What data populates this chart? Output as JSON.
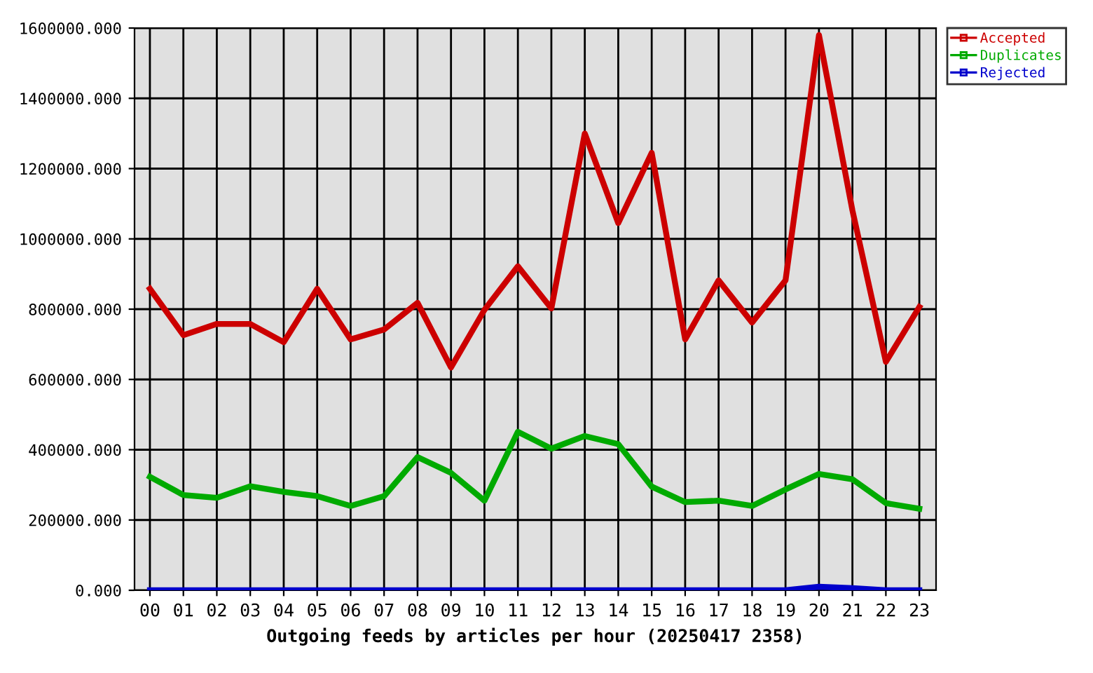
{
  "chart_data": {
    "type": "line",
    "xlabel": "Outgoing feeds by articles per hour (20250417 2358)",
    "categories": [
      "00",
      "01",
      "02",
      "03",
      "04",
      "05",
      "06",
      "07",
      "08",
      "09",
      "10",
      "11",
      "12",
      "13",
      "14",
      "15",
      "16",
      "17",
      "18",
      "19",
      "20",
      "21",
      "22",
      "23"
    ],
    "series": [
      {
        "name": "Accepted",
        "color": "#cc0000",
        "values": [
          858000,
          726000,
          758000,
          758000,
          706000,
          858000,
          714000,
          742000,
          818000,
          634000,
          798000,
          922000,
          802000,
          1300000,
          1045000,
          1245000,
          714000,
          882000,
          762000,
          882000,
          1580000,
          1081000,
          650000,
          806000
        ]
      },
      {
        "name": "Duplicates",
        "color": "#00aa00",
        "values": [
          323000,
          271000,
          263000,
          296000,
          280000,
          268000,
          240000,
          268000,
          379000,
          334000,
          255000,
          451000,
          403000,
          439000,
          416000,
          295000,
          251000,
          255000,
          240000,
          287000,
          331000,
          316000,
          248000,
          232000
        ]
      },
      {
        "name": "Rejected",
        "color": "#0000cc",
        "values": [
          0,
          0,
          0,
          0,
          0,
          0,
          0,
          0,
          0,
          0,
          0,
          0,
          0,
          0,
          0,
          0,
          0,
          0,
          0,
          0,
          10000,
          6000,
          0,
          0
        ]
      }
    ],
    "ylim": [
      0,
      1600000
    ],
    "yticks": [
      {
        "value": 0,
        "label": "0.000"
      },
      {
        "value": 200000,
        "label": "200000.000"
      },
      {
        "value": 400000,
        "label": "400000.000"
      },
      {
        "value": 600000,
        "label": "600000.000"
      },
      {
        "value": 800000,
        "label": "800000.000"
      },
      {
        "value": 1000000,
        "label": "1000000.000"
      },
      {
        "value": 1200000,
        "label": "1200000.000"
      },
      {
        "value": 1400000,
        "label": "1400000.000"
      },
      {
        "value": 1600000,
        "label": "1600000.000"
      }
    ],
    "grid": true,
    "legend": "top right",
    "marker": "none",
    "line_style": "solid"
  }
}
